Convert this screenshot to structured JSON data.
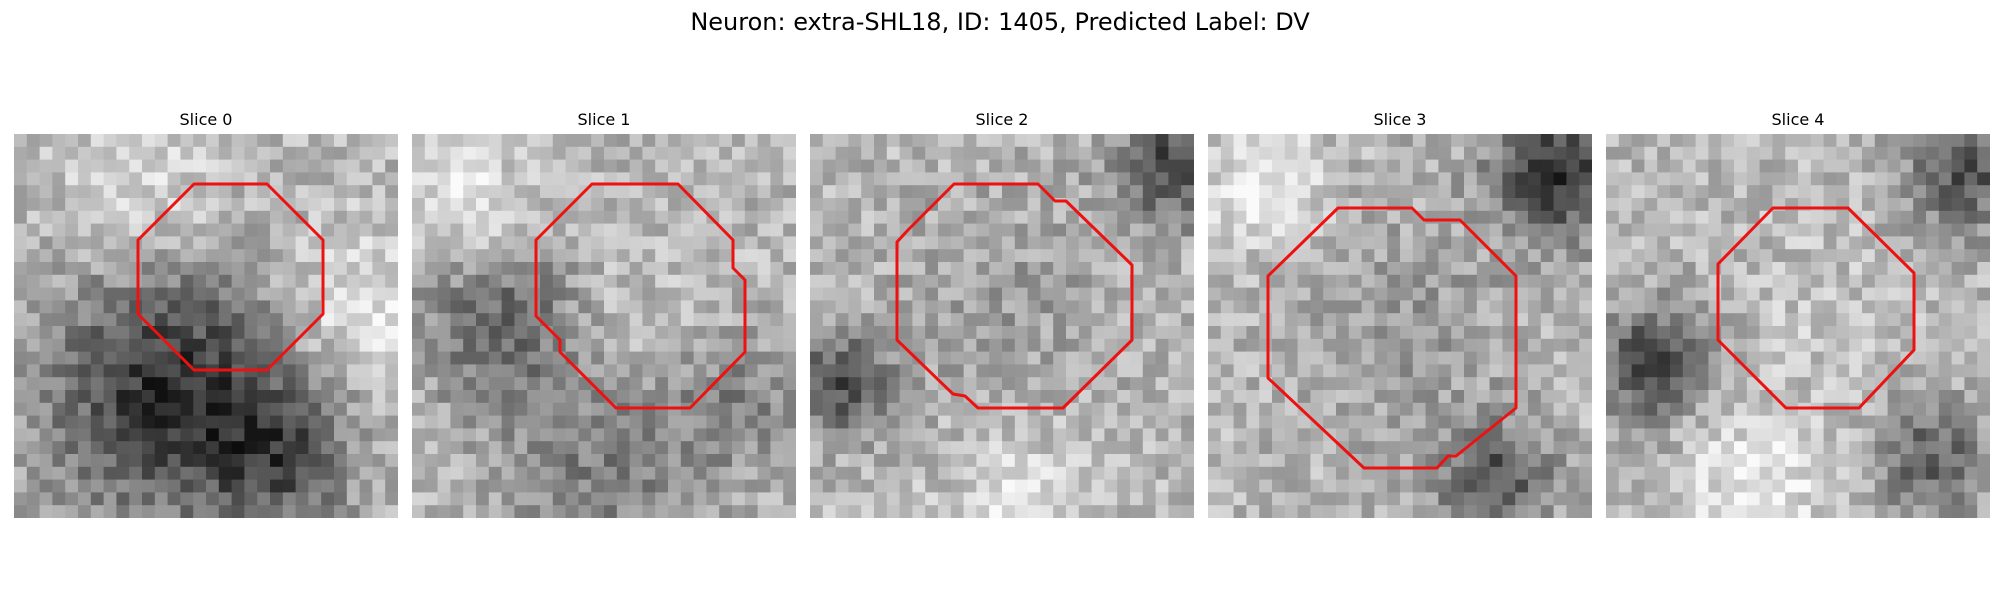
{
  "figure": {
    "title": "Neuron: extra-SHL18, ID: 1405, Predicted Label: DV"
  },
  "outline_color": "#ee1111",
  "panels": [
    {
      "title": "Slice 0"
    },
    {
      "title": "Slice 1"
    },
    {
      "title": "Slice 2"
    },
    {
      "title": "Slice 3"
    },
    {
      "title": "Slice 4"
    }
  ]
}
